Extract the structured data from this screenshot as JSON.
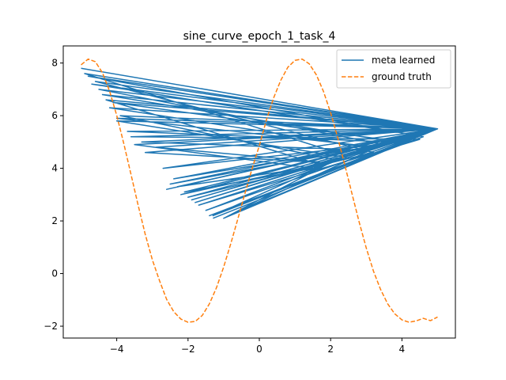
{
  "chart_data": {
    "type": "line",
    "title": "sine_curve_epoch_1_task_4",
    "xlabel": "",
    "ylabel": "",
    "xlim": [
      -5.5,
      5.5
    ],
    "ylim": [
      -2.45,
      8.65
    ],
    "xticks": [
      -4,
      -2,
      0,
      2,
      4
    ],
    "yticks": [
      -2,
      0,
      2,
      4,
      6,
      8
    ],
    "xtick_labels": [
      "−4",
      "−2",
      "0",
      "2",
      "4"
    ],
    "ytick_labels": [
      "−2",
      "0",
      "2",
      "4",
      "6",
      "8"
    ],
    "grid": false,
    "legend_position": "top-right",
    "series": [
      {
        "name": "meta learned",
        "color": "#1f77b4",
        "style": "solid",
        "x": [
          -5.0,
          5.0,
          -1.4,
          5.0,
          -4.7,
          4.2,
          -2.6,
          5.0,
          -4.4,
          3.8,
          -1.9,
          5.0,
          -4.2,
          3.0,
          -2.4,
          5.0,
          -4.8,
          4.6,
          -1.2,
          5.0,
          -4.0,
          2.5,
          -2.2,
          5.0,
          -3.6,
          4.5,
          -1.7,
          5.0,
          -4.5,
          3.5,
          -2.5,
          5.0,
          -3.9,
          2.2,
          -1.5,
          5.0,
          -4.6,
          3.2,
          -2.0,
          5.0,
          -4.1,
          4.0,
          -2.7,
          5.0,
          -3.3,
          2.8,
          -1.3,
          5.0,
          -4.3,
          1.8,
          -2.3,
          5.0,
          -3.7,
          3.7,
          -1.8,
          5.0,
          -4.9,
          2.4,
          -1.0,
          5.0,
          -3.5,
          1.5,
          -2.1,
          5.0,
          -4.0,
          3.3,
          -0.7,
          5.0,
          -3.2,
          2.0,
          -2.9,
          5.0,
          -1.3
        ],
        "y": [
          7.8,
          5.5,
          2.2,
          5.5,
          7.2,
          5.3,
          3.2,
          5.5,
          6.8,
          5.0,
          2.8,
          5.5,
          6.3,
          4.8,
          3.6,
          5.5,
          7.5,
          5.2,
          2.3,
          5.5,
          5.8,
          4.4,
          3.0,
          5.5,
          5.2,
          5.1,
          2.6,
          5.5,
          7.0,
          4.9,
          3.4,
          5.5,
          6.0,
          4.3,
          2.4,
          5.5,
          7.3,
          4.6,
          2.9,
          5.5,
          6.5,
          5.0,
          4.0,
          5.5,
          5.0,
          4.7,
          2.2,
          5.5,
          6.6,
          4.1,
          3.3,
          5.5,
          5.4,
          5.0,
          2.7,
          5.5,
          7.6,
          4.5,
          2.1,
          5.5,
          4.9,
          4.0,
          3.1,
          5.5,
          5.9,
          4.8,
          2.3,
          5.5,
          4.6,
          4.2,
          4.8,
          5.5,
          2.1
        ]
      },
      {
        "name": "ground truth",
        "color": "#ff7f0e",
        "style": "dashed",
        "function": "3.1*sin(1.0*(x-0.3)+0.95) + ... ",
        "x": [
          -5.0,
          -4.8,
          -4.6,
          -4.4,
          -4.2,
          -4.0,
          -3.8,
          -3.6,
          -3.4,
          -3.2,
          -3.0,
          -2.8,
          -2.6,
          -2.4,
          -2.2,
          -2.0,
          -1.8,
          -1.6,
          -1.4,
          -1.2,
          -1.0,
          -0.8,
          -0.6,
          -0.4,
          -0.2,
          0.0,
          0.2,
          0.4,
          0.6,
          0.8,
          1.0,
          1.2,
          1.4,
          1.6,
          1.8,
          2.0,
          2.2,
          2.4,
          2.6,
          2.8,
          3.0,
          3.2,
          3.4,
          3.6,
          3.8,
          4.0,
          4.2,
          4.4,
          4.6,
          4.8,
          5.0
        ],
        "y": [
          7.93,
          8.15,
          8.05,
          7.63,
          6.93,
          6.01,
          4.93,
          3.77,
          2.6,
          1.49,
          0.52,
          -0.27,
          -0.98,
          -1.45,
          -1.73,
          -1.85,
          -1.82,
          -1.59,
          -1.15,
          -0.53,
          0.25,
          1.14,
          2.09,
          3.06,
          4.0,
          4.86,
          5.84,
          6.67,
          7.34,
          7.84,
          8.1,
          8.15,
          7.97,
          7.55,
          6.92,
          6.11,
          5.16,
          4.11,
          3.03,
          1.96,
          0.97,
          0.1,
          -0.6,
          -1.15,
          -1.53,
          -1.76,
          -1.85,
          -1.8,
          -1.7,
          -1.79,
          -1.65
        ]
      }
    ]
  }
}
